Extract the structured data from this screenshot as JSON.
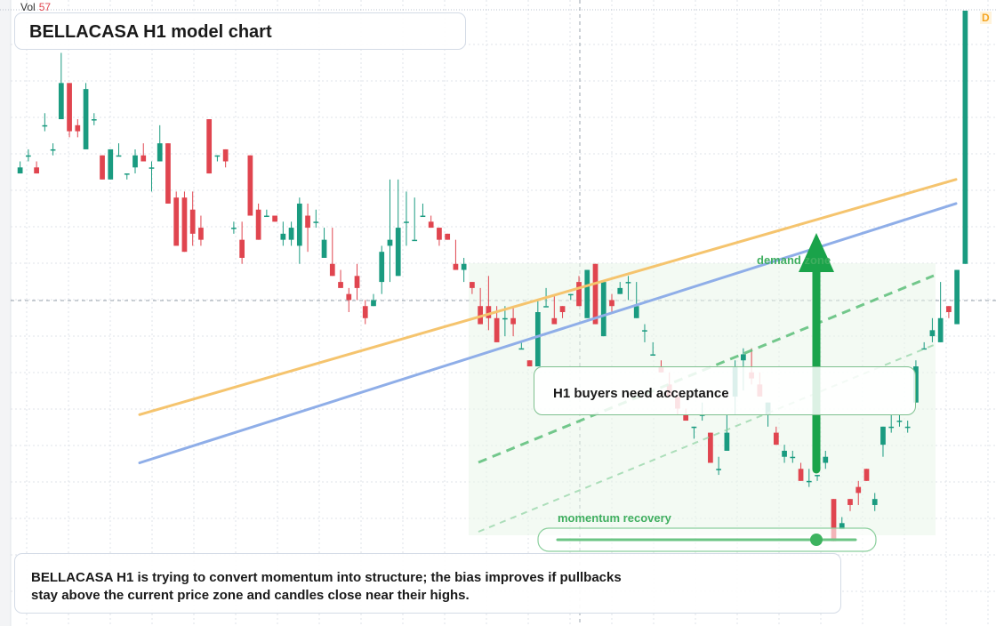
{
  "header": {
    "vol_label": "Vol",
    "vol_value": "57",
    "timeframe_badge": "D"
  },
  "title": "BELLACASA H1 model chart",
  "zone_label": "demand zone",
  "callout": "H1 buyers need acceptance",
  "momentum_label": "momentum recovery",
  "summary": "BELLACASA H1 is trying to convert momentum into structure; the bias improves if pullbacks stay above the current price zone and candles close near their highs.",
  "colors": {
    "up": "#1a9b80",
    "down": "#e0454f",
    "ema_fast": "#f5c46e",
    "ema_slow": "#8faee8",
    "accent": "#1aa34a",
    "grid": "#dfe3e8"
  },
  "chart_data": {
    "type": "candlestick",
    "title": "BELLACASA H1 model chart",
    "y_range": [
      0,
      100
    ],
    "candles": [
      {
        "o": 73,
        "h": 75,
        "l": 73,
        "c": 74
      },
      {
        "o": 76,
        "h": 77,
        "l": 75,
        "c": 76
      },
      {
        "o": 74,
        "h": 75,
        "l": 73,
        "c": 73
      },
      {
        "o": 81,
        "h": 83,
        "l": 80,
        "c": 81
      },
      {
        "o": 77,
        "h": 78,
        "l": 76,
        "c": 77
      },
      {
        "o": 82,
        "h": 93,
        "l": 82,
        "c": 88
      },
      {
        "o": 88,
        "h": 88,
        "l": 79,
        "c": 80
      },
      {
        "o": 81,
        "h": 82,
        "l": 79,
        "c": 80
      },
      {
        "o": 77,
        "h": 88,
        "l": 77,
        "c": 87
      },
      {
        "o": 82,
        "h": 83,
        "l": 81,
        "c": 82
      },
      {
        "o": 76,
        "h": 76,
        "l": 72,
        "c": 72
      },
      {
        "o": 72,
        "h": 77,
        "l": 72,
        "c": 77
      },
      {
        "o": 76,
        "h": 78,
        "l": 76,
        "c": 76
      },
      {
        "o": 73,
        "h": 73,
        "l": 72,
        "c": 73
      },
      {
        "o": 74,
        "h": 77,
        "l": 73,
        "c": 76
      },
      {
        "o": 76,
        "h": 78,
        "l": 75,
        "c": 75
      },
      {
        "o": 74,
        "h": 75,
        "l": 70,
        "c": 74
      },
      {
        "o": 75,
        "h": 81,
        "l": 75,
        "c": 78
      },
      {
        "o": 78,
        "h": 78,
        "l": 68,
        "c": 68
      },
      {
        "o": 69,
        "h": 70,
        "l": 62,
        "c": 61
      },
      {
        "o": 69,
        "h": 70,
        "l": 60,
        "c": 60
      },
      {
        "o": 67,
        "h": 70,
        "l": 61,
        "c": 63
      },
      {
        "o": 64,
        "h": 66,
        "l": 61,
        "c": 62
      },
      {
        "o": 82,
        "h": 82,
        "l": 73,
        "c": 73
      },
      {
        "o": 76,
        "h": 76,
        "l": 75,
        "c": 76
      },
      {
        "o": 77,
        "h": 77,
        "l": 74,
        "c": 75
      },
      {
        "o": 64,
        "h": 65,
        "l": 63,
        "c": 64
      },
      {
        "o": 62,
        "h": 65,
        "l": 58,
        "c": 59
      },
      {
        "o": 76,
        "h": 76,
        "l": 66,
        "c": 66
      },
      {
        "o": 67,
        "h": 68,
        "l": 62,
        "c": 62
      },
      {
        "o": 66,
        "h": 67,
        "l": 66,
        "c": 66
      },
      {
        "o": 66,
        "h": 66,
        "l": 65,
        "c": 65
      },
      {
        "o": 62,
        "h": 65,
        "l": 61,
        "c": 63
      },
      {
        "o": 62,
        "h": 65,
        "l": 61,
        "c": 64
      },
      {
        "o": 61,
        "h": 69,
        "l": 58,
        "c": 68
      },
      {
        "o": 66,
        "h": 68,
        "l": 60,
        "c": 64
      },
      {
        "o": 65,
        "h": 67,
        "l": 64,
        "c": 65
      },
      {
        "o": 59,
        "h": 64,
        "l": 59,
        "c": 62
      },
      {
        "o": 58,
        "h": 64,
        "l": 56,
        "c": 56
      },
      {
        "o": 55,
        "h": 57,
        "l": 54,
        "c": 54
      },
      {
        "o": 53,
        "h": 54,
        "l": 50,
        "c": 52
      },
      {
        "o": 56,
        "h": 58,
        "l": 52,
        "c": 54
      },
      {
        "o": 51,
        "h": 52,
        "l": 48,
        "c": 49
      },
      {
        "o": 51,
        "h": 53,
        "l": 51,
        "c": 52
      },
      {
        "o": 55,
        "h": 61,
        "l": 53,
        "c": 60
      },
      {
        "o": 61,
        "h": 72,
        "l": 55,
        "c": 62
      },
      {
        "o": 56,
        "h": 72,
        "l": 56,
        "c": 64
      },
      {
        "o": 65,
        "h": 70,
        "l": 61,
        "c": 65
      },
      {
        "o": 62,
        "h": 69,
        "l": 62,
        "c": 62
      },
      {
        "o": 66,
        "h": 68,
        "l": 66,
        "c": 66
      },
      {
        "o": 65,
        "h": 66,
        "l": 64,
        "c": 64
      },
      {
        "o": 64,
        "h": 64,
        "l": 61,
        "c": 62
      },
      {
        "o": 63,
        "h": 63,
        "l": 62,
        "c": 62
      },
      {
        "o": 58,
        "h": 62,
        "l": 57,
        "c": 57
      },
      {
        "o": 57,
        "h": 59,
        "l": 55,
        "c": 58
      },
      {
        "o": 55,
        "h": 55,
        "l": 53,
        "c": 54
      },
      {
        "o": 51,
        "h": 54,
        "l": 48,
        "c": 48
      },
      {
        "o": 51,
        "h": 56,
        "l": 47,
        "c": 49
      },
      {
        "o": 49,
        "h": 51,
        "l": 45,
        "c": 45
      },
      {
        "o": 49,
        "h": 51,
        "l": 46,
        "c": 49
      },
      {
        "o": 49,
        "h": 51,
        "l": 46,
        "c": 48
      },
      {
        "o": 44,
        "h": 45,
        "l": 44,
        "c": 44
      },
      {
        "o": 42,
        "h": 42,
        "l": 41,
        "c": 41
      },
      {
        "o": 41,
        "h": 52,
        "l": 41,
        "c": 50
      },
      {
        "o": 51,
        "h": 54,
        "l": 51,
        "c": 51
      },
      {
        "o": 49,
        "h": 53,
        "l": 49,
        "c": 48
      },
      {
        "o": 51,
        "h": 51,
        "l": 49,
        "c": 50
      },
      {
        "o": 53,
        "h": 53,
        "l": 52,
        "c": 53
      },
      {
        "o": 55,
        "h": 56,
        "l": 51,
        "c": 51
      },
      {
        "o": 49,
        "h": 57,
        "l": 49,
        "c": 57
      },
      {
        "o": 58,
        "h": 58,
        "l": 48,
        "c": 48
      },
      {
        "o": 46,
        "h": 55,
        "l": 46,
        "c": 55
      },
      {
        "o": 52,
        "h": 53,
        "l": 50,
        "c": 51
      },
      {
        "o": 53,
        "h": 55,
        "l": 53,
        "c": 54
      },
      {
        "o": 55,
        "h": 56,
        "l": 52,
        "c": 55
      },
      {
        "o": 49,
        "h": 55,
        "l": 49,
        "c": 51
      },
      {
        "o": 47,
        "h": 48,
        "l": 45,
        "c": 47
      },
      {
        "o": 43,
        "h": 45,
        "l": 43,
        "c": 43
      },
      {
        "o": 41,
        "h": 42,
        "l": 40,
        "c": 40
      },
      {
        "o": 38,
        "h": 40,
        "l": 36,
        "c": 36
      },
      {
        "o": 36,
        "h": 37,
        "l": 33,
        "c": 34
      },
      {
        "o": 33,
        "h": 34,
        "l": 32,
        "c": 32
      },
      {
        "o": 31,
        "h": 31,
        "l": 29,
        "c": 31
      },
      {
        "o": 33,
        "h": 35,
        "l": 32,
        "c": 33
      },
      {
        "o": 30,
        "h": 30,
        "l": 25,
        "c": 25
      },
      {
        "o": 24,
        "h": 26,
        "l": 23,
        "c": 24
      },
      {
        "o": 27,
        "h": 33,
        "l": 27,
        "c": 30
      },
      {
        "o": 36,
        "h": 42,
        "l": 33,
        "c": 41
      },
      {
        "o": 42,
        "h": 44,
        "l": 37,
        "c": 43
      },
      {
        "o": 40,
        "h": 44,
        "l": 38,
        "c": 39
      },
      {
        "o": 38,
        "h": 40,
        "l": 36,
        "c": 36
      },
      {
        "o": 33,
        "h": 35,
        "l": 31,
        "c": 35
      },
      {
        "o": 30,
        "h": 31,
        "l": 28,
        "c": 28
      },
      {
        "o": 26,
        "h": 28,
        "l": 25,
        "c": 27
      },
      {
        "o": 26,
        "h": 27,
        "l": 25,
        "c": 26
      },
      {
        "o": 24,
        "h": 25,
        "l": 22,
        "c": 22
      },
      {
        "o": 22,
        "h": 24,
        "l": 21,
        "c": 22
      },
      {
        "o": 23,
        "h": 23,
        "l": 22,
        "c": 23
      },
      {
        "o": 25,
        "h": 27,
        "l": 24,
        "c": 26
      },
      {
        "o": 19,
        "h": 19,
        "l": 12,
        "c": 12
      },
      {
        "o": 14,
        "h": 16,
        "l": 14,
        "c": 15
      },
      {
        "o": 19,
        "h": 19,
        "l": 17,
        "c": 18
      },
      {
        "o": 21,
        "h": 22,
        "l": 18,
        "c": 20
      },
      {
        "o": 24,
        "h": 24,
        "l": 22,
        "c": 22
      },
      {
        "o": 18,
        "h": 20,
        "l": 17,
        "c": 19
      },
      {
        "o": 28,
        "h": 31,
        "l": 26,
        "c": 31
      },
      {
        "o": 31,
        "h": 33,
        "l": 30,
        "c": 31
      },
      {
        "o": 32,
        "h": 33,
        "l": 31,
        "c": 32
      },
      {
        "o": 31,
        "h": 32,
        "l": 30,
        "c": 31
      },
      {
        "o": 35,
        "h": 42,
        "l": 35,
        "c": 41
      },
      {
        "o": 44,
        "h": 45,
        "l": 44,
        "c": 44
      },
      {
        "o": 46,
        "h": 49,
        "l": 45,
        "c": 47
      },
      {
        "o": 45,
        "h": 55,
        "l": 45,
        "c": 49
      },
      {
        "o": 51,
        "h": 51,
        "l": 49,
        "c": 50
      },
      {
        "o": 48,
        "h": 57,
        "l": 48,
        "c": 57
      },
      {
        "o": 58,
        "h": 100,
        "l": 58,
        "c": 100
      }
    ],
    "moving_averages": [
      {
        "name": "",
        "color": "ema_fast",
        "points": [
          [
            0,
            33
          ],
          [
            1,
            72
          ]
        ]
      },
      {
        "name": "",
        "color": "ema_slow",
        "points": [
          [
            0,
            25
          ],
          [
            1,
            68
          ]
        ]
      }
    ],
    "grid": true,
    "annotations": [
      "demand zone",
      "H1 buyers need acceptance",
      "momentum recovery"
    ]
  }
}
